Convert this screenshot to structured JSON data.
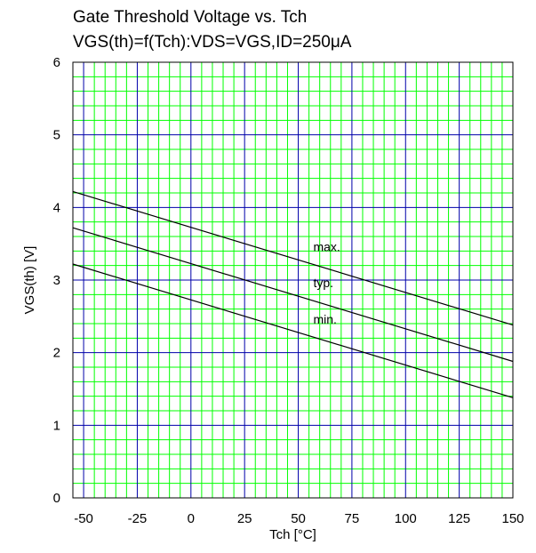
{
  "chart_data": {
    "type": "line",
    "title": "Gate Threshold Voltage vs. Tch",
    "subtitle": "VGS(th)=f(Tch):VDS=VGS,ID=250μA",
    "xlabel": "Tch [°C]",
    "ylabel": "VGS(th) [V]",
    "xlim": [
      -55,
      150
    ],
    "ylim": [
      0,
      6
    ],
    "x_ticks": [
      -50,
      -25,
      0,
      25,
      50,
      75,
      100,
      125,
      150
    ],
    "y_ticks": [
      0,
      1,
      2,
      3,
      4,
      5,
      6
    ],
    "grid": true,
    "series": [
      {
        "name": "max.",
        "x": [
          -55,
          150
        ],
        "y": [
          4.22,
          2.38
        ]
      },
      {
        "name": "typ.",
        "x": [
          -55,
          150
        ],
        "y": [
          3.72,
          1.88
        ]
      },
      {
        "name": "min.",
        "x": [
          -55,
          150
        ],
        "y": [
          3.22,
          1.38
        ]
      }
    ],
    "annotations": [
      {
        "text": "max.",
        "x": 57,
        "y": 3.4
      },
      {
        "text": "typ.",
        "x": 57,
        "y": 2.9
      },
      {
        "text": "min.",
        "x": 57,
        "y": 2.4
      }
    ],
    "colors": {
      "minor_grid": "#00ff00",
      "major_grid": "#0000aa",
      "lines": "#000000"
    }
  }
}
